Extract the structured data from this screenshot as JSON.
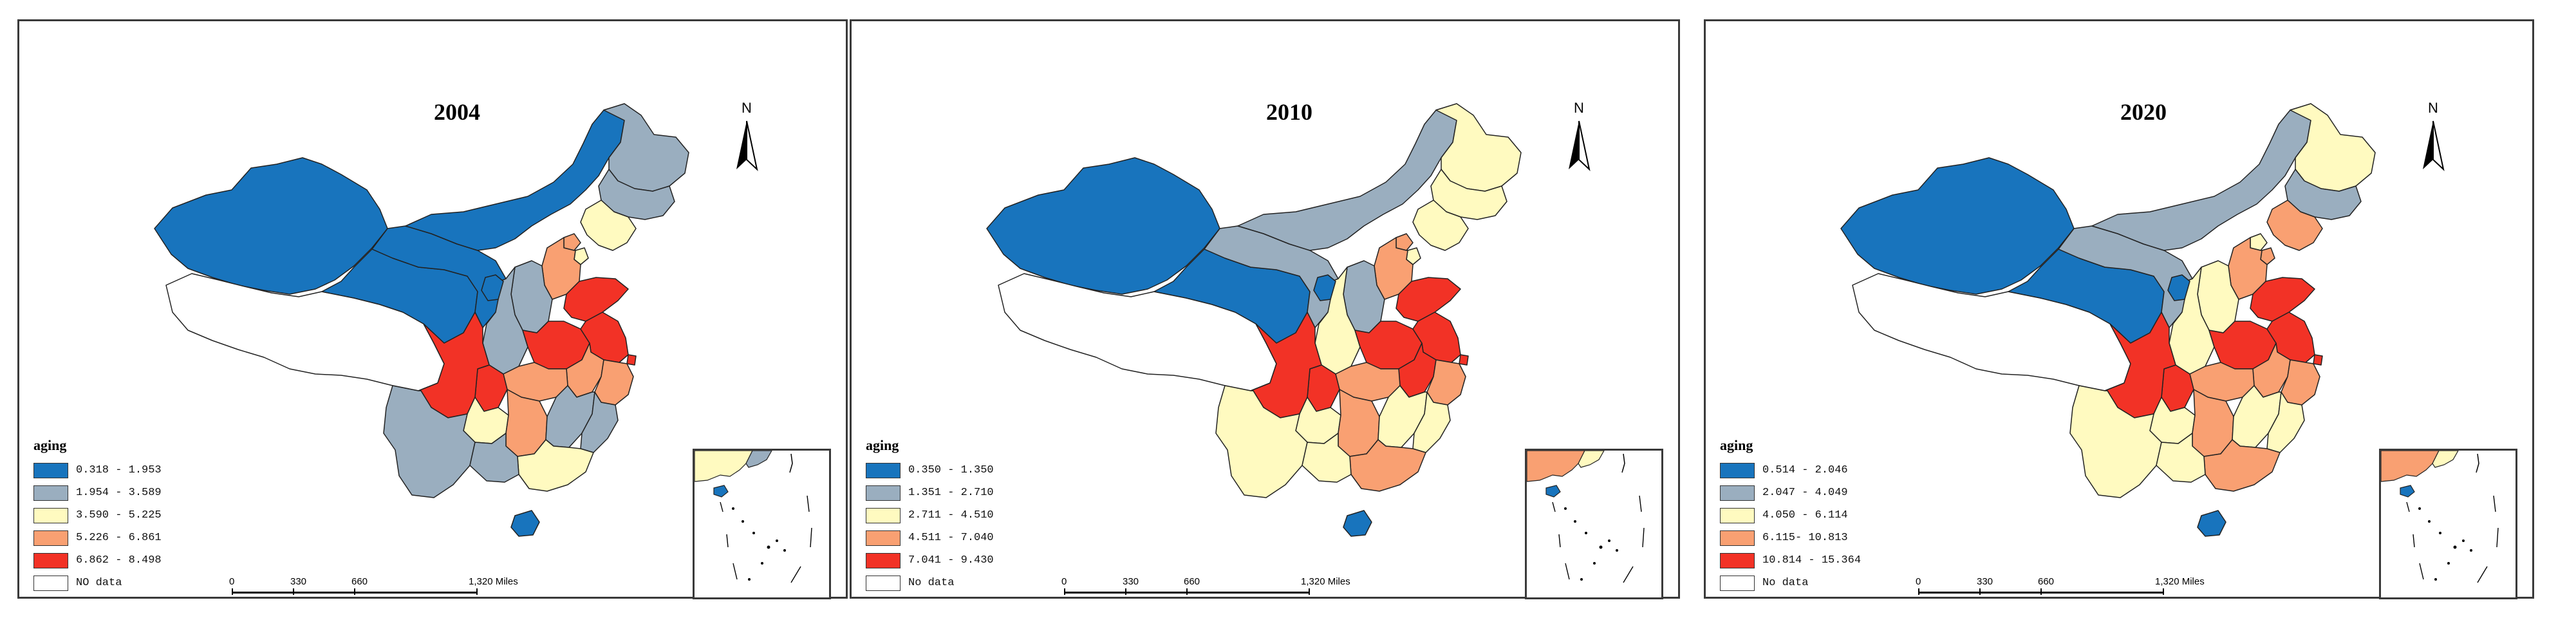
{
  "maps": [
    {
      "year": "2004",
      "legend_title": "aging",
      "classes": [
        {
          "label": "0.318 - 1.953",
          "color": "#1874bd"
        },
        {
          "label": "1.954 - 3.589",
          "color": "#9aaebf"
        },
        {
          "label": "3.590 - 5.225",
          "color": "#fffac0"
        },
        {
          "label": "5.226 - 6.861",
          "color": "#f9a072"
        },
        {
          "label": "6.862 - 8.498",
          "color": "#f23226"
        },
        {
          "label": "NO data",
          "color": "#ffffff"
        }
      ],
      "region_classes": {
        "xinjiang": 0,
        "tibet": 5,
        "qinghai": 0,
        "gansu": 0,
        "inner_mongolia": 0,
        "heilongjiang": 1,
        "jilin": 1,
        "liaoning": 2,
        "beijing": 3,
        "tianjin": 2,
        "hebei": 3,
        "shanxi": 1,
        "shaanxi": 1,
        "ningxia": 0,
        "henan": 4,
        "shandong": 4,
        "jiangsu": 4,
        "anhui": 3,
        "shanghai": 4,
        "zhejiang": 3,
        "hubei": 3,
        "sichuan": 4,
        "chongqing": 4,
        "guizhou": 2,
        "yunnan": 1,
        "hunan": 3,
        "jiangxi": 1,
        "fujian": 1,
        "guangdong": 2,
        "guangxi": 1,
        "hainan": 0
      }
    },
    {
      "year": "2010",
      "legend_title": "aging",
      "classes": [
        {
          "label": "0.350 - 1.350",
          "color": "#1874bd"
        },
        {
          "label": "1.351 - 2.710",
          "color": "#9aaebf"
        },
        {
          "label": "2.711 - 4.510",
          "color": "#fffac0"
        },
        {
          "label": "4.511 - 7.040",
          "color": "#f9a072"
        },
        {
          "label": "7.041 - 9.430",
          "color": "#f23226"
        },
        {
          "label": "No data",
          "color": "#ffffff"
        }
      ],
      "region_classes": {
        "xinjiang": 0,
        "tibet": 5,
        "qinghai": 0,
        "gansu": 1,
        "inner_mongolia": 1,
        "heilongjiang": 2,
        "jilin": 2,
        "liaoning": 2,
        "beijing": 3,
        "tianjin": 2,
        "hebei": 3,
        "shanxi": 1,
        "shaanxi": 2,
        "ningxia": 0,
        "henan": 4,
        "shandong": 4,
        "jiangsu": 4,
        "anhui": 4,
        "shanghai": 4,
        "zhejiang": 3,
        "hubei": 3,
        "sichuan": 4,
        "chongqing": 4,
        "guizhou": 2,
        "yunnan": 2,
        "hunan": 3,
        "jiangxi": 2,
        "fujian": 2,
        "guangdong": 3,
        "guangxi": 2,
        "hainan": 0
      }
    },
    {
      "year": "2020",
      "legend_title": "aging",
      "classes": [
        {
          "label": "0.514 - 2.046",
          "color": "#1874bd"
        },
        {
          "label": "2.047 - 4.049",
          "color": "#9aaebf"
        },
        {
          "label": "4.050 - 6.114",
          "color": "#fffac0"
        },
        {
          "label": "6.115- 10.813",
          "color": "#f9a072"
        },
        {
          "label": "10.814 - 15.364",
          "color": "#f23226"
        },
        {
          "label": "No data",
          "color": "#ffffff"
        }
      ],
      "region_classes": {
        "xinjiang": 0,
        "tibet": 5,
        "qinghai": 0,
        "gansu": 1,
        "inner_mongolia": 1,
        "heilongjiang": 2,
        "jilin": 1,
        "liaoning": 3,
        "beijing": 2,
        "tianjin": 3,
        "hebei": 3,
        "shanxi": 2,
        "shaanxi": 2,
        "ningxia": 0,
        "henan": 4,
        "shandong": 4,
        "jiangsu": 4,
        "anhui": 3,
        "shanghai": 4,
        "zhejiang": 3,
        "hubei": 3,
        "sichuan": 4,
        "chongqing": 4,
        "guizhou": 2,
        "yunnan": 2,
        "hunan": 3,
        "jiangxi": 2,
        "fujian": 2,
        "guangdong": 3,
        "guangxi": 2,
        "hainan": 0
      }
    }
  ],
  "north_label": "N",
  "scale_bar": {
    "ticks": [
      "0",
      "330",
      "660",
      "1,320 Miles"
    ]
  }
}
